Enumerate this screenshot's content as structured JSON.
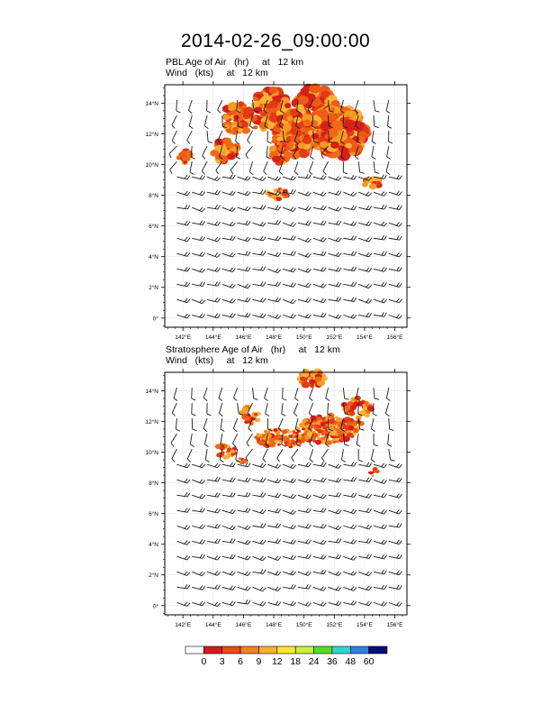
{
  "title": "2014-02-26_09:00:00",
  "panels": [
    {
      "id": "pbl",
      "line1": "PBL Age of Air   (hr)     at   12 km",
      "line2": "Wind   (kts)     at   12 km"
    },
    {
      "id": "strat",
      "line1": "Stratosphere Age of Air   (hr)     at   12 km",
      "line2": "Wind   (kts)     at   12 km"
    }
  ],
  "colors": {
    "levels": [
      "#ffffff",
      "#d7191c",
      "#ee4a10",
      "#f5821e",
      "#f7b32b",
      "#fbe92a",
      "#c6f03a",
      "#55dd22",
      "#28d8d0",
      "#2e7fe8",
      "#070b83"
    ],
    "fill_palette": [
      "#e13b14",
      "#f06a16",
      "#f59a22",
      "#f8b234",
      "#ef5a18",
      "#d61f1a"
    ]
  },
  "chart_data": {
    "type": "heatmap",
    "description_fields": {
      "variable_panel1": "PBL Age of Air",
      "variable_panel2": "Stratosphere Age of Air",
      "units": "hr",
      "overlay": "Wind barbs (kts)",
      "level": "12 km"
    },
    "x_axis": {
      "ticks": [
        "142°E",
        "144°E",
        "146°E",
        "148°E",
        "150°E",
        "152°E",
        "154°E",
        "156°E"
      ],
      "range": [
        140.8,
        156.8
      ]
    },
    "y_axis": {
      "ticks": [
        "0°",
        "2°N",
        "4°N",
        "6°N",
        "8°N",
        "10°N",
        "12°N",
        "14°N"
      ],
      "range": [
        -0.6,
        15.2
      ]
    },
    "colorbar": {
      "labels": [
        "0",
        "3",
        "6",
        "9",
        "12",
        "18",
        "24",
        "36",
        "48",
        "60"
      ]
    },
    "grid": true
  }
}
